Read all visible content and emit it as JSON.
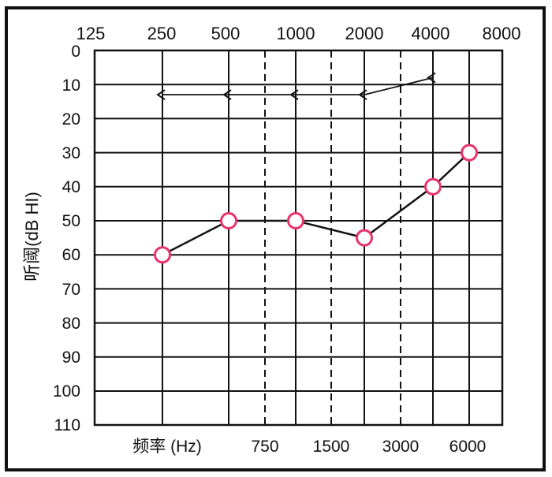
{
  "chart_data": {
    "type": "line",
    "ylabel": "听阈(dB HI)",
    "xlabel": "频率 (Hz)",
    "top_x_ticks": [
      "125",
      "250",
      "500",
      "1000",
      "2000",
      "4000",
      "8000"
    ],
    "bottom_x_ticks": [
      "750",
      "1500",
      "3000",
      "6000"
    ],
    "y_ticks": [
      "0",
      "10",
      "20",
      "30",
      "40",
      "50",
      "60",
      "70",
      "80",
      "90",
      "100",
      "110"
    ],
    "ylim": [
      0,
      110
    ],
    "y_inverted": true,
    "grid": true,
    "series": [
      {
        "marker": "circle",
        "color": "#e8336b",
        "points": [
          {
            "x": 250,
            "y": 60
          },
          {
            "x": 500,
            "y": 50
          },
          {
            "x": 1000,
            "y": 50
          },
          {
            "x": 2000,
            "y": 55
          },
          {
            "x": 4000,
            "y": 40
          },
          {
            "x": 6000,
            "y": 30
          }
        ]
      },
      {
        "marker": "left-angle",
        "color": "#111111",
        "points": [
          {
            "x": 250,
            "y": 13
          },
          {
            "x": 500,
            "y": 13
          },
          {
            "x": 1000,
            "y": 13
          },
          {
            "x": 2000,
            "y": 13
          },
          {
            "x": 4000,
            "y": 8
          }
        ]
      }
    ]
  }
}
